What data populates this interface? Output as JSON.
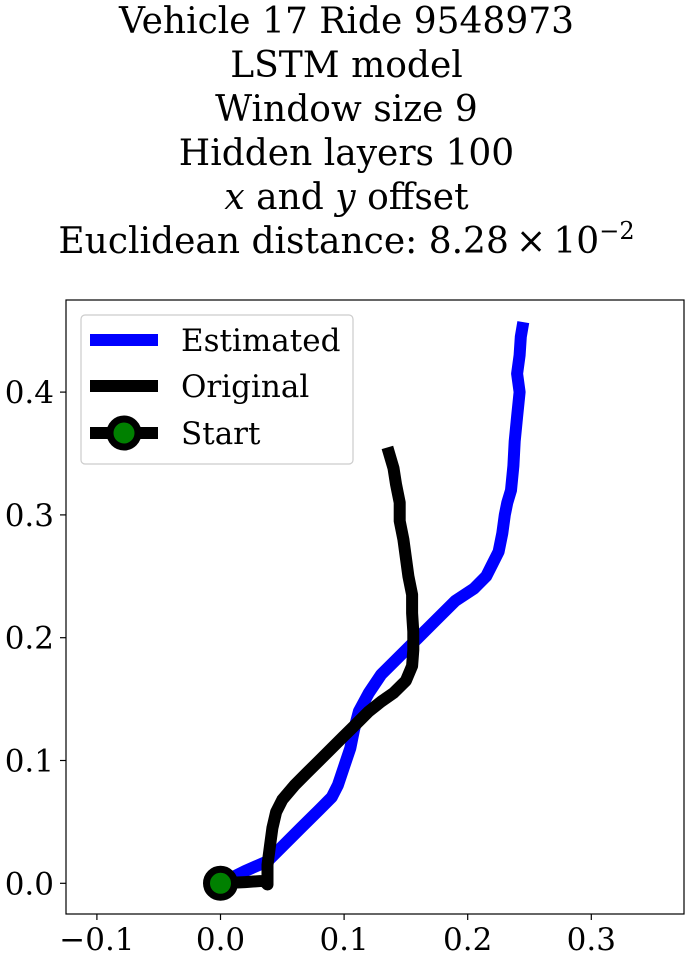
{
  "title": {
    "line1": "Vehicle 17 Ride 9548973",
    "line2": "LSTM model",
    "line3": "Window size 9",
    "line4": "Hidden layers 100",
    "line5_var1": "x",
    "line5_and": " and ",
    "line5_var2": "y",
    "line5_rest": " offset",
    "line6_prefix": "Euclidean distance: 8.28 × 10",
    "line6_exp": "−2"
  },
  "chart_data": {
    "type": "line",
    "xlim": [
      -0.125,
      0.375
    ],
    "ylim": [
      -0.025,
      0.475
    ],
    "xticks": [
      -0.1,
      0.0,
      0.1,
      0.2,
      0.3
    ],
    "xtick_labels": [
      "−0.1",
      "0.0",
      "0.1",
      "0.2",
      "0.3"
    ],
    "yticks": [
      0.0,
      0.1,
      0.2,
      0.3,
      0.4
    ],
    "ytick_labels": [
      "0.0",
      "0.1",
      "0.2",
      "0.3",
      "0.4"
    ],
    "grid": false,
    "legend_position": "upper-left",
    "series": [
      {
        "name": "Estimated",
        "color": "#0000ff",
        "points": [
          [
            0.0,
            0.0
          ],
          [
            0.02,
            0.01
          ],
          [
            0.038,
            0.018
          ],
          [
            0.05,
            0.03
          ],
          [
            0.065,
            0.045
          ],
          [
            0.08,
            0.06
          ],
          [
            0.09,
            0.07
          ],
          [
            0.095,
            0.08
          ],
          [
            0.1,
            0.095
          ],
          [
            0.105,
            0.11
          ],
          [
            0.108,
            0.125
          ],
          [
            0.112,
            0.14
          ],
          [
            0.12,
            0.155
          ],
          [
            0.13,
            0.17
          ],
          [
            0.145,
            0.185
          ],
          [
            0.16,
            0.2
          ],
          [
            0.175,
            0.215
          ],
          [
            0.19,
            0.23
          ],
          [
            0.205,
            0.24
          ],
          [
            0.215,
            0.25
          ],
          [
            0.22,
            0.26
          ],
          [
            0.225,
            0.27
          ],
          [
            0.228,
            0.285
          ],
          [
            0.23,
            0.3
          ],
          [
            0.232,
            0.31
          ],
          [
            0.235,
            0.32
          ],
          [
            0.237,
            0.34
          ],
          [
            0.238,
            0.36
          ],
          [
            0.24,
            0.38
          ],
          [
            0.242,
            0.4
          ],
          [
            0.24,
            0.415
          ],
          [
            0.242,
            0.43
          ],
          [
            0.243,
            0.445
          ],
          [
            0.245,
            0.457
          ]
        ]
      },
      {
        "name": "Original",
        "color": "#000000",
        "points": [
          [
            0.0,
            0.0
          ],
          [
            0.02,
            0.001
          ],
          [
            0.035,
            0.002
          ],
          [
            0.038,
            -0.001
          ],
          [
            0.038,
            0.015
          ],
          [
            0.04,
            0.03
          ],
          [
            0.042,
            0.045
          ],
          [
            0.045,
            0.058
          ],
          [
            0.05,
            0.068
          ],
          [
            0.06,
            0.08
          ],
          [
            0.07,
            0.09
          ],
          [
            0.08,
            0.1
          ],
          [
            0.09,
            0.11
          ],
          [
            0.1,
            0.12
          ],
          [
            0.11,
            0.13
          ],
          [
            0.12,
            0.14
          ],
          [
            0.13,
            0.148
          ],
          [
            0.14,
            0.155
          ],
          [
            0.15,
            0.165
          ],
          [
            0.155,
            0.177
          ],
          [
            0.156,
            0.19
          ],
          [
            0.156,
            0.205
          ],
          [
            0.155,
            0.22
          ],
          [
            0.155,
            0.235
          ],
          [
            0.152,
            0.25
          ],
          [
            0.15,
            0.265
          ],
          [
            0.148,
            0.28
          ],
          [
            0.145,
            0.295
          ],
          [
            0.145,
            0.31
          ],
          [
            0.142,
            0.325
          ],
          [
            0.14,
            0.338
          ],
          [
            0.135,
            0.355
          ]
        ]
      }
    ],
    "start": {
      "name": "Start",
      "x": 0.0,
      "y": 0.0,
      "marker_color": "#008000",
      "edge_color": "#000000"
    }
  }
}
